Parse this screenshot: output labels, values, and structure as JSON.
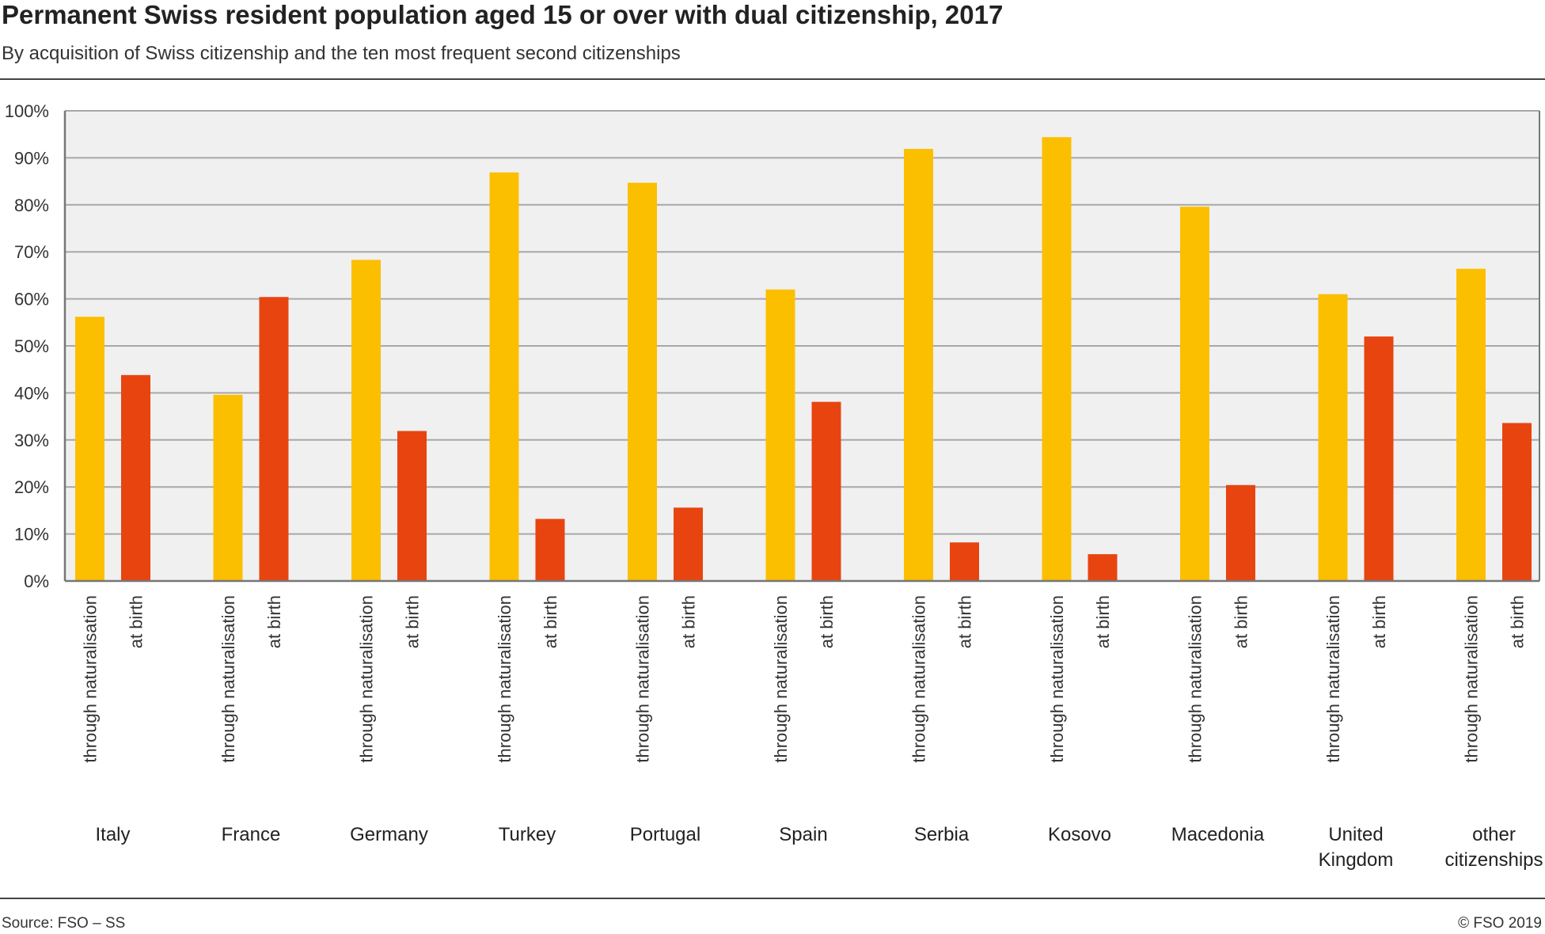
{
  "header": {
    "title": "Permanent Swiss resident population aged 15 or over with dual citizenship, 2017",
    "subtitle": "By acquisition of Swiss citizenship and the ten most frequent second citizenships"
  },
  "footer": {
    "source": "Source: FSO – SS",
    "copyright": "© FSO 2019"
  },
  "colors": {
    "naturalisation": "#FBBF00",
    "birth": "#E84410",
    "plot_background": "#F0F0F0",
    "grid": "#A8A8A8"
  },
  "chart_data": {
    "type": "bar",
    "title": "Permanent Swiss resident population aged 15 or over with dual citizenship, 2017",
    "subtitle": "By acquisition of Swiss citizenship and the ten most frequent second citizenships",
    "categories": [
      "Italy",
      "France",
      "Germany",
      "Turkey",
      "Portugal",
      "Spain",
      "Serbia",
      "Kosovo",
      "Macedonia",
      "United Kingdom",
      "other citizenships"
    ],
    "category_label_lines": [
      [
        "Italy"
      ],
      [
        "France"
      ],
      [
        "Germany"
      ],
      [
        "Turkey"
      ],
      [
        "Portugal"
      ],
      [
        "Spain"
      ],
      [
        "Serbia"
      ],
      [
        "Kosovo"
      ],
      [
        "Macedonia"
      ],
      [
        "United",
        "Kingdom"
      ],
      [
        "other",
        "citizenships"
      ]
    ],
    "series": [
      {
        "name": "through naturalisation",
        "values": [
          56.2,
          39.6,
          68.3,
          86.9,
          84.7,
          62.0,
          91.9,
          94.4,
          79.6,
          61.0,
          66.4
        ]
      },
      {
        "name": "at birth",
        "values": [
          43.8,
          60.4,
          31.9,
          13.2,
          15.6,
          38.1,
          8.2,
          5.7,
          20.4,
          52.0,
          33.6
        ]
      }
    ],
    "xlabel": "",
    "ylabel": "",
    "ylim": [
      0,
      100
    ],
    "yticks": [
      "0%",
      "10%",
      "20%",
      "30%",
      "40%",
      "50%",
      "60%",
      "70%",
      "80%",
      "90%",
      "100%"
    ],
    "grid": true,
    "legend": "none"
  }
}
